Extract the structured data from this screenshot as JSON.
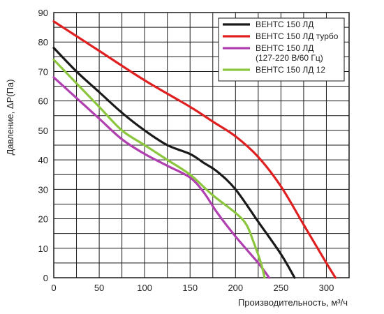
{
  "chart_data": {
    "type": "line",
    "xlabel": "Производительность, м³/ч",
    "ylabel": "Давление, ΔP(Па)",
    "xlim": [
      0,
      325
    ],
    "ylim": [
      0,
      90
    ],
    "xticks": [
      0,
      50,
      100,
      150,
      200,
      250,
      300
    ],
    "yticks": [
      0,
      10,
      20,
      30,
      40,
      50,
      60,
      70,
      80,
      90
    ],
    "grid": true,
    "legend_position": "top-right",
    "series": [
      {
        "name": "ВЕНТС 150 ЛД",
        "color": "#1a1a1a",
        "points": [
          [
            0,
            78
          ],
          [
            25,
            70
          ],
          [
            50,
            63
          ],
          [
            75,
            56
          ],
          [
            100,
            50
          ],
          [
            125,
            45
          ],
          [
            150,
            42
          ],
          [
            165,
            39
          ],
          [
            180,
            36
          ],
          [
            200,
            30
          ],
          [
            225,
            19
          ],
          [
            250,
            8
          ],
          [
            265,
            0
          ]
        ]
      },
      {
        "name": "ВЕНТС 150 ЛД турбо",
        "color": "#e02020",
        "points": [
          [
            0,
            87
          ],
          [
            50,
            77
          ],
          [
            100,
            67
          ],
          [
            150,
            58
          ],
          [
            175,
            53
          ],
          [
            200,
            48
          ],
          [
            225,
            41
          ],
          [
            250,
            31
          ],
          [
            275,
            18
          ],
          [
            300,
            5
          ],
          [
            310,
            0
          ]
        ]
      },
      {
        "name": "ВЕНТС 150 ЛД\n(127-220 В/60 Гц)",
        "color": "#b040b0",
        "points": [
          [
            0,
            68
          ],
          [
            25,
            61
          ],
          [
            50,
            54
          ],
          [
            75,
            47
          ],
          [
            100,
            42
          ],
          [
            125,
            38
          ],
          [
            150,
            34
          ],
          [
            165,
            29
          ],
          [
            180,
            22
          ],
          [
            200,
            14
          ],
          [
            225,
            5
          ],
          [
            237,
            0
          ]
        ]
      },
      {
        "name": "ВЕНТС 150 ЛД 12",
        "color": "#8cc63f",
        "points": [
          [
            0,
            74
          ],
          [
            25,
            66
          ],
          [
            50,
            58
          ],
          [
            75,
            50
          ],
          [
            100,
            45
          ],
          [
            125,
            40
          ],
          [
            150,
            35
          ],
          [
            175,
            28
          ],
          [
            200,
            22
          ],
          [
            212,
            18
          ],
          [
            220,
            12
          ],
          [
            228,
            5
          ],
          [
            232,
            0
          ]
        ]
      }
    ]
  }
}
